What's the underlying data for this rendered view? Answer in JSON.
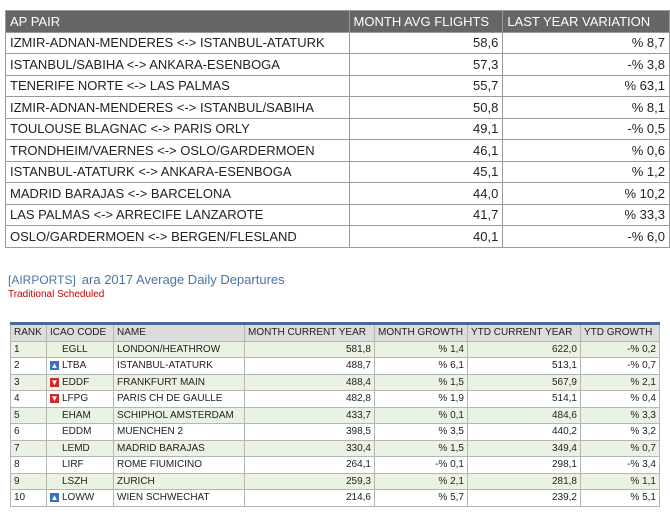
{
  "top_table": {
    "header": [
      "AP PAIR",
      "MONTH AVG FLIGHTS",
      "LAST YEAR VARIATION"
    ],
    "rows": [
      [
        "IZMIR-ADNAN-MENDERES <-> ISTANBUL-ATATURK",
        "58,6",
        "% 8,7"
      ],
      [
        "ISTANBUL/SABIHA <-> ANKARA-ESENBOGA",
        "57,3",
        "-% 3,8"
      ],
      [
        "TENERIFE NORTE <-> LAS PALMAS",
        "55,7",
        "% 63,1"
      ],
      [
        "IZMIR-ADNAN-MENDERES <-> ISTANBUL/SABIHA",
        "50,8",
        "% 8,1"
      ],
      [
        "TOULOUSE BLAGNAC <-> PARIS ORLY",
        "49,1",
        "-% 0,5"
      ],
      [
        "TRONDHEIM/VAERNES <-> OSLO/GARDERMOEN",
        "46,1",
        "% 0,6"
      ],
      [
        "ISTANBUL-ATATURK <-> ANKARA-ESENBOGA",
        "45,1",
        "% 1,2"
      ],
      [
        "MADRID BARAJAS <-> BARCELONA",
        "44,0",
        "% 10,2"
      ],
      [
        "LAS PALMAS <-> ARRECIFE LANZAROTE",
        "41,7",
        "% 33,3"
      ],
      [
        "OSLO/GARDERMOEN <-> BERGEN/FLESLAND",
        "40,1",
        "-% 6,0"
      ]
    ]
  },
  "section": {
    "tag": "[AIRPORTS]",
    "title": "ara 2017 Average Daily Departures",
    "subtitle": "Traditional Scheduled"
  },
  "bottom_table": {
    "header": [
      "RANK",
      "ICAO CODE",
      "NAME",
      "MONTH CURRENT YEAR",
      "MONTH GROWTH",
      "YTD CURRENT YEAR",
      "YTD GROWTH"
    ],
    "rows": [
      [
        "1",
        "EGLL",
        "LONDON/HEATHROW",
        "581,8",
        "% 1,4",
        "622,0",
        "-% 0,2"
      ],
      [
        "2",
        "LTBA",
        "ISTANBUL-ATATURK",
        "488,7",
        "% 6,1",
        "513,1",
        "-% 0,7"
      ],
      [
        "3",
        "EDDF",
        "FRANKFURT MAIN",
        "488,4",
        "% 1,5",
        "567,9",
        "% 2,1"
      ],
      [
        "4",
        "LFPG",
        "PARIS CH DE GAULLE",
        "482,8",
        "% 1,9",
        "514,1",
        "% 0,4"
      ],
      [
        "5",
        "EHAM",
        "SCHIPHOL AMSTERDAM",
        "433,7",
        "% 0,1",
        "484,6",
        "% 3,3"
      ],
      [
        "6",
        "EDDM",
        "MUENCHEN 2",
        "398,5",
        "% 3,5",
        "440,2",
        "% 3,2"
      ],
      [
        "7",
        "LEMD",
        "MADRID BARAJAS",
        "330,4",
        "% 1,5",
        "349,4",
        "% 0,7"
      ],
      [
        "8",
        "LIRF",
        "ROME FIUMICINO",
        "264,1",
        "-% 0,1",
        "298,1",
        "-% 3,4"
      ],
      [
        "9",
        "LSZH",
        "ZURICH",
        "259,3",
        "% 2,1",
        "281,8",
        "% 1,1"
      ],
      [
        "10",
        "LOWW",
        "WIEN SCHWECHAT",
        "214,6",
        "% 5,7",
        "239,2",
        "% 5,1"
      ]
    ]
  }
}
